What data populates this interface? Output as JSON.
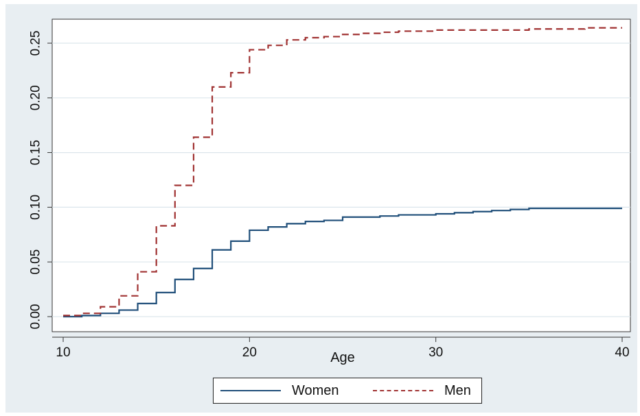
{
  "chart_data": {
    "type": "line",
    "title": "",
    "xlabel": "Age",
    "ylabel": "",
    "xlim": [
      10,
      40
    ],
    "ylim": [
      0,
      0.27
    ],
    "x_ticks": [
      10,
      20,
      30,
      40
    ],
    "y_ticks": [
      "0.00",
      "0.05",
      "0.10",
      "0.15",
      "0.20",
      "0.25"
    ],
    "y_tick_values": [
      0,
      0.05,
      0.1,
      0.15,
      0.2,
      0.25
    ],
    "grid": true,
    "legend": "bottom",
    "step": true,
    "series": [
      {
        "name": "Women",
        "color": "#1f4e79",
        "style": "solid",
        "x": [
          10,
          11,
          12,
          13,
          14,
          15,
          16,
          17,
          18,
          19,
          20,
          21,
          22,
          23,
          24,
          25,
          26,
          27,
          28,
          29,
          30,
          31,
          32,
          33,
          34,
          35,
          36,
          37,
          38,
          39,
          40
        ],
        "y": [
          0.0,
          0.001,
          0.003,
          0.006,
          0.012,
          0.022,
          0.034,
          0.044,
          0.061,
          0.069,
          0.079,
          0.082,
          0.085,
          0.087,
          0.088,
          0.091,
          0.091,
          0.092,
          0.093,
          0.093,
          0.094,
          0.095,
          0.096,
          0.097,
          0.098,
          0.099,
          0.099,
          0.099,
          0.099,
          0.099,
          0.099
        ]
      },
      {
        "name": "Men",
        "color": "#a03232",
        "style": "dashed",
        "x": [
          10,
          11,
          12,
          13,
          14,
          15,
          16,
          17,
          18,
          19,
          20,
          21,
          22,
          23,
          24,
          25,
          26,
          27,
          28,
          29,
          30,
          31,
          32,
          33,
          34,
          35,
          36,
          37,
          38,
          39,
          40
        ],
        "y": [
          0.001,
          0.003,
          0.009,
          0.019,
          0.041,
          0.083,
          0.12,
          0.164,
          0.21,
          0.223,
          0.244,
          0.248,
          0.253,
          0.255,
          0.256,
          0.258,
          0.259,
          0.26,
          0.261,
          0.261,
          0.262,
          0.262,
          0.262,
          0.262,
          0.262,
          0.263,
          0.263,
          0.263,
          0.264,
          0.264,
          0.264
        ]
      }
    ]
  }
}
